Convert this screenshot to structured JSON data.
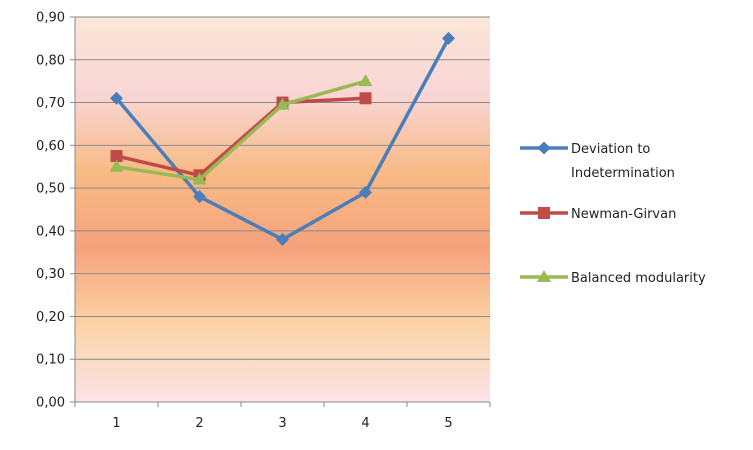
{
  "chart_data": {
    "type": "line",
    "categories": [
      "1",
      "2",
      "3",
      "4",
      "5"
    ],
    "ylim": [
      0,
      0.9
    ],
    "y_ticks": [
      "0,00",
      "0,10",
      "0,20",
      "0,30",
      "0,40",
      "0,50",
      "0,60",
      "0,70",
      "0,80",
      "0,90"
    ],
    "grid": true,
    "legend_position": "right",
    "plot_background": "vertical gradient pink-orange-pink",
    "series": [
      {
        "name_lines": [
          "Deviation to",
          "Indetermination"
        ],
        "color": "#4a7ebb",
        "marker": "diamond",
        "values": [
          0.71,
          0.48,
          0.38,
          0.49,
          0.85
        ]
      },
      {
        "name": "Newman-Girvan",
        "color": "#be4b48",
        "marker": "square",
        "values": [
          0.575,
          0.53,
          0.7,
          0.71,
          null
        ]
      },
      {
        "name": "Balanced modularity",
        "color": "#98b954",
        "marker": "triangle",
        "values": [
          0.55,
          0.52,
          0.695,
          0.75,
          null
        ]
      }
    ]
  }
}
